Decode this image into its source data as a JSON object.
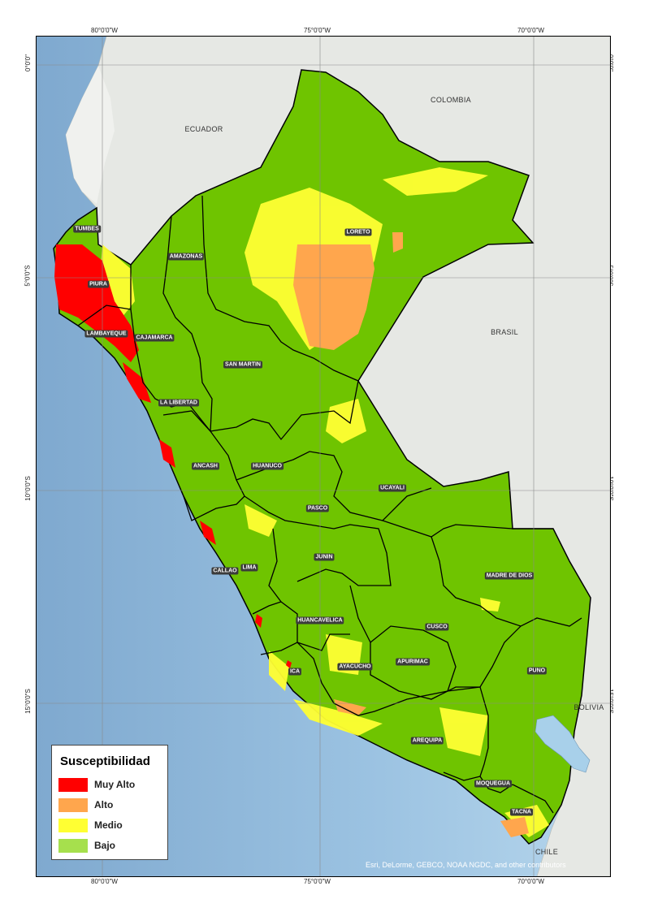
{
  "grid_labels": {
    "top": [
      "80°0'0\"W",
      "75°0'0\"W",
      "70°0'0\"W"
    ],
    "bottom": [
      "80°0'0\"W",
      "75°0'0\"W",
      "70°0'0\"W"
    ],
    "left": [
      "0°0'0\"",
      "5°0'0\"S",
      "10°0'0\"S",
      "15°0'0\"S"
    ],
    "right": [
      "0°0'0\"",
      "5°0'0\"S",
      "10°0'0\"S",
      "15°0'0\"S"
    ]
  },
  "countries": [
    "COLOMBIA",
    "ECUADOR",
    "BRASIL",
    "BOLIVIA",
    "CHILE"
  ],
  "regions": [
    "TUMBES",
    "AMAZONAS",
    "LORETO",
    "PIURA",
    "LAMBAYEQUE",
    "CAJAMARCA",
    "SAN MARTIN",
    "LA LIBERTAD",
    "ANCASH",
    "HUANUCO",
    "UCAYALI",
    "PASCO",
    "JUNIN",
    "CALLAO",
    "LIMA",
    "MADRE DE DIOS",
    "HUANCAVELICA",
    "CUSCO",
    "ICA",
    "AYACUCHO",
    "APURIMAC",
    "PUNO",
    "AREQUIPA",
    "MOQUEGUA",
    "TACNA"
  ],
  "legend": {
    "title": "Susceptibilidad",
    "items": [
      {
        "label": "Muy Alto",
        "color": "#ff0000"
      },
      {
        "label": "Alto",
        "color": "#ffa64d"
      },
      {
        "label": "Medio",
        "color": "#ffff33"
      },
      {
        "label": "Bajo",
        "color": "#a6e04d"
      }
    ]
  },
  "attribution": "Esri, DeLorme, GEBCO, NOAA NGDC, and other contributors",
  "colors": {
    "ocean": "#8fb8d9",
    "land_neighbor": "#e6e8e4",
    "peru_base": "#6fc400",
    "boundary": "#000000"
  }
}
